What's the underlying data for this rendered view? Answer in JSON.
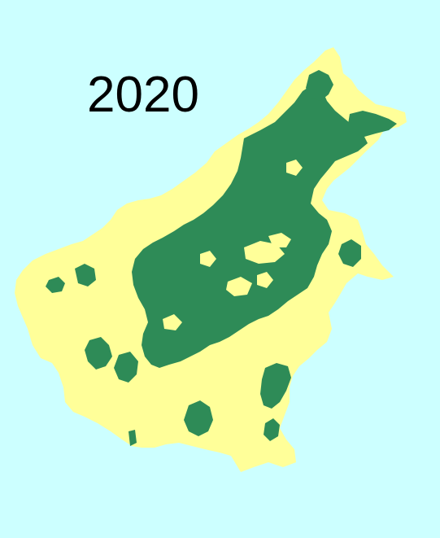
{
  "map": {
    "year_label": "2020",
    "colors": {
      "sea": "#CCFFFF",
      "land": "#FFFF99",
      "forest": "#2E8B57"
    }
  }
}
